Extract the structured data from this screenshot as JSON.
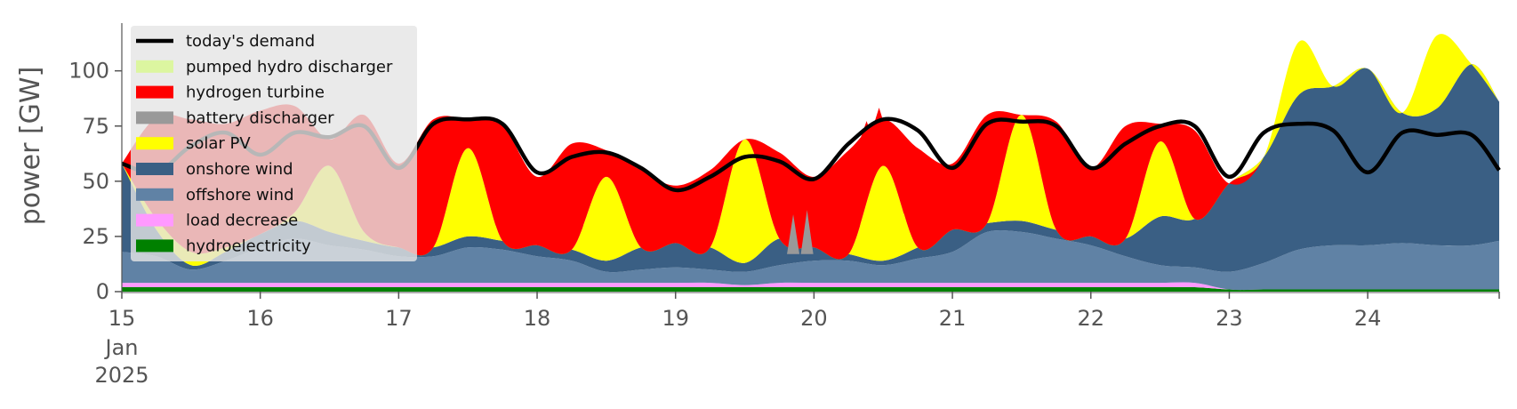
{
  "chart_data": {
    "type": "area",
    "ylabel": "power [GW]",
    "ylim": [
      0,
      120
    ],
    "yticks": [
      0,
      25,
      50,
      75,
      100
    ],
    "x_unit": "day of month",
    "xlim": [
      15,
      24.95
    ],
    "xticks": [
      {
        "value": 15,
        "label": "15"
      },
      {
        "value": 16,
        "label": "16"
      },
      {
        "value": 17,
        "label": "17"
      },
      {
        "value": 18,
        "label": "18"
      },
      {
        "value": 19,
        "label": "19"
      },
      {
        "value": 20,
        "label": "20"
      },
      {
        "value": 21,
        "label": "21"
      },
      {
        "value": 22,
        "label": "22"
      },
      {
        "value": 23,
        "label": "23"
      },
      {
        "value": 24,
        "label": "24"
      }
    ],
    "xtick_sublabels": [
      "Jan",
      "2025"
    ],
    "legend_position": "upper left",
    "grid": false,
    "x": [
      15.0,
      15.25,
      15.5,
      15.75,
      16.0,
      16.25,
      16.5,
      16.75,
      17.0,
      17.25,
      17.5,
      17.75,
      18.0,
      18.25,
      18.5,
      18.75,
      19.0,
      19.25,
      19.5,
      19.75,
      20.0,
      20.25,
      20.5,
      20.75,
      21.0,
      21.25,
      21.5,
      21.75,
      22.0,
      22.25,
      22.5,
      22.75,
      23.0,
      23.25,
      23.5,
      23.75,
      24.0,
      24.25,
      24.5,
      24.75,
      24.95
    ],
    "series": [
      {
        "name": "hydroelectricity",
        "color": "#008000",
        "values": [
          2,
          2,
          2,
          2,
          2,
          2,
          2,
          2,
          2,
          2,
          2,
          2,
          2,
          2,
          2,
          2,
          2,
          2,
          2,
          2,
          2,
          2,
          2,
          2,
          2,
          2,
          2,
          2,
          2,
          2,
          2,
          2,
          1,
          1,
          1,
          1,
          1,
          1,
          1,
          1,
          1
        ]
      },
      {
        "name": "load decrease",
        "color": "#ff99ff",
        "values": [
          2,
          2,
          2,
          2,
          2,
          2,
          2,
          2,
          2,
          2,
          2,
          2,
          2,
          2,
          2,
          2,
          2,
          2,
          1,
          2,
          2,
          2,
          2,
          2,
          2,
          2,
          2,
          2,
          2,
          2,
          2,
          2,
          0,
          0,
          0,
          0,
          0,
          0,
          0,
          0,
          0
        ]
      },
      {
        "name": "offshore wind",
        "color": "#6082a5",
        "values": [
          14,
          12,
          6,
          10,
          16,
          20,
          17,
          15,
          12,
          12,
          16,
          15,
          12,
          10,
          5,
          6,
          7,
          6,
          6,
          8,
          10,
          10,
          8,
          11,
          14,
          23,
          23,
          20,
          17,
          12,
          8,
          7,
          8,
          12,
          18,
          20,
          20,
          21,
          20,
          20,
          22
        ]
      },
      {
        "name": "onshore wind",
        "color": "#3a5f84",
        "values": [
          40,
          12,
          2,
          4,
          6,
          8,
          6,
          4,
          4,
          4,
          5,
          4,
          5,
          5,
          5,
          10,
          11,
          10,
          4,
          12,
          6,
          3,
          2,
          5,
          10,
          4,
          5,
          4,
          4,
          8,
          22,
          22,
          40,
          48,
          70,
          72,
          80,
          59,
          62,
          82,
          63
        ]
      },
      {
        "name": "solar PV",
        "color": "#ffff00",
        "values": [
          0,
          5,
          6,
          2,
          0,
          4,
          30,
          4,
          0,
          0,
          40,
          0,
          0,
          0,
          38,
          0,
          0,
          0,
          56,
          0,
          0,
          0,
          43,
          0,
          0,
          0,
          48,
          0,
          0,
          0,
          34,
          0,
          0,
          0,
          24,
          0,
          0,
          0,
          33,
          0,
          0
        ]
      },
      {
        "name": "battery discharger",
        "color": "#999999",
        "values": [
          0,
          0,
          0,
          0,
          0,
          0,
          0,
          0,
          0,
          0,
          0,
          0,
          0,
          0,
          0,
          0,
          0,
          0,
          0,
          0,
          0,
          0,
          0,
          0,
          0,
          0,
          0,
          0,
          0,
          0,
          0,
          0,
          0,
          0,
          0,
          0,
          0,
          0,
          0,
          0,
          0
        ]
      },
      {
        "name": "hydrogen turbine",
        "color": "#ff0000",
        "values": [
          0,
          46,
          60,
          56,
          56,
          48,
          12,
          53,
          38,
          58,
          13,
          52,
          31,
          48,
          12,
          35,
          26,
          35,
          0,
          39,
          32,
          47,
          21,
          45,
          30,
          49,
          0,
          49,
          31,
          51,
          8,
          40,
          0,
          0,
          0,
          0,
          0,
          0,
          0,
          0,
          0
        ]
      },
      {
        "name": "pumped hydro discharger",
        "color": "#dcf6a0",
        "values": [
          0,
          0,
          0,
          0,
          0,
          0,
          0,
          0,
          0,
          0,
          0,
          0,
          0,
          0,
          0,
          0,
          0,
          0,
          0,
          0,
          0,
          0,
          0,
          0,
          0,
          0,
          0,
          0,
          0,
          0,
          0,
          0,
          0,
          0,
          0,
          0,
          0,
          0,
          0,
          0,
          0
        ]
      }
    ],
    "spikes": [
      {
        "series": "battery discharger",
        "x": 19.85,
        "value": 18
      },
      {
        "series": "battery discharger",
        "x": 19.95,
        "value": 20
      },
      {
        "series": "hydrogen turbine",
        "x": 20.38,
        "value": 8
      },
      {
        "series": "hydrogen turbine",
        "x": 20.47,
        "value": 9
      }
    ],
    "demand": {
      "name": "today's demand",
      "color": "#000000",
      "values": [
        58,
        54,
        66,
        72,
        62,
        72,
        70,
        75,
        56,
        76,
        78,
        76,
        54,
        61,
        63,
        56,
        46,
        52,
        61,
        59,
        51,
        67,
        78,
        73,
        56,
        76,
        77,
        75,
        56,
        67,
        75,
        75,
        52,
        72,
        76,
        73,
        54,
        72,
        71,
        71,
        55
      ]
    },
    "legend": [
      "today's demand",
      "pumped hydro discharger",
      "hydrogen turbine",
      "battery discharger",
      "solar PV",
      "onshore wind",
      "offshore wind",
      "load decrease",
      "hydroelectricity"
    ]
  }
}
